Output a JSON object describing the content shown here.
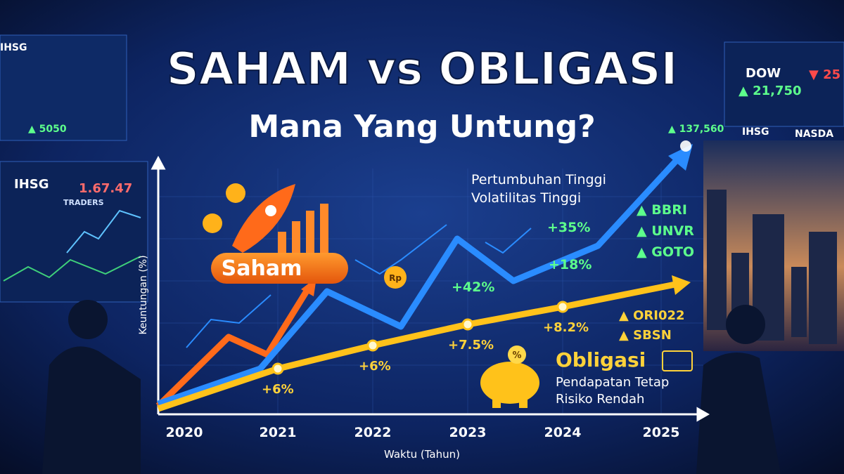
{
  "header": {
    "title": "SAHAM vs OBLIGASI",
    "subtitle": "Mana Yang Untung?"
  },
  "axes": {
    "y_label": "Keuntungan (%)",
    "x_label": "Waktu (Tahun)",
    "years": [
      "2020",
      "2021",
      "2022",
      "2023",
      "2024",
      "2025"
    ]
  },
  "stocks": {
    "label": "Saham",
    "notes": [
      "Pertumbuhan Tinggi",
      "Volatilitas Tinggi"
    ],
    "tickers": [
      "▲ BBRI",
      "▲ UNVR",
      "▲ GOTO"
    ],
    "gains": [
      "+35%",
      "+18%",
      "+42%"
    ],
    "currency": "Rp"
  },
  "bonds": {
    "label": "Obligasi",
    "notes": [
      "Pendapatan Tetap",
      "Risiko Rendah"
    ],
    "products": [
      "▲ ORI022",
      "▲ SBSN"
    ],
    "gains": [
      "+6%",
      "+6%",
      "+7.5%",
      "+8.2%"
    ],
    "percent": "%"
  },
  "background": {
    "screens": [
      "IHSG",
      "1.67.47",
      "TRADERS",
      "DOW",
      "▲ 21,750",
      "NASDA",
      "IHSG",
      "▲ 137,560",
      "▼ 25",
      "IHSG",
      "▲ 5050"
    ]
  }
}
